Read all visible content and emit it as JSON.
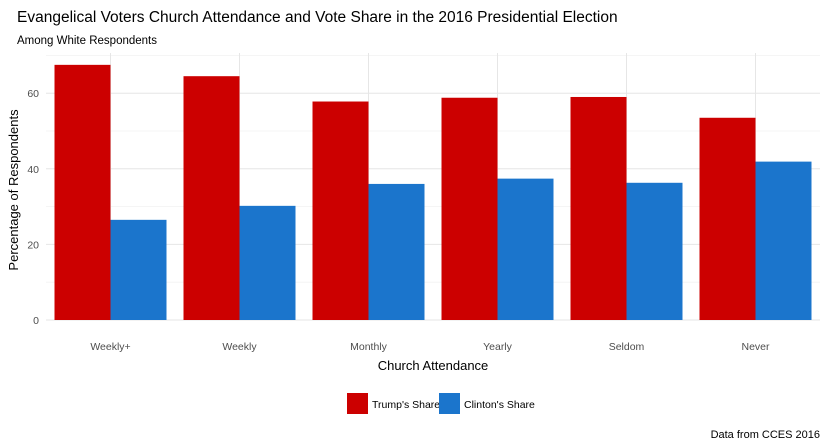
{
  "chart_data": {
    "type": "bar",
    "title": "Evangelical Voters Church Attendance and Vote Share in the 2016 Presidential Election",
    "subtitle": "Among White Respondents",
    "xlabel": "Church Attendance",
    "ylabel": "Percentage of Respondents",
    "caption": "Data from CCES 2016",
    "categories": [
      "Weekly+",
      "Weekly",
      "Monthly",
      "Yearly",
      "Seldom",
      "Never"
    ],
    "series": [
      {
        "name": "Trump's Share",
        "color": "#cc0000",
        "values": [
          67.5,
          64.5,
          57.8,
          58.8,
          59.0,
          53.5
        ]
      },
      {
        "name": "Clinton's Share",
        "color": "#1b75cc",
        "values": [
          26.5,
          30.2,
          36.0,
          37.4,
          36.3,
          41.9
        ]
      }
    ],
    "ylim": [
      0,
      70
    ],
    "yticks": [
      0,
      20,
      40,
      60
    ],
    "grid": true,
    "legend_position": "bottom"
  }
}
